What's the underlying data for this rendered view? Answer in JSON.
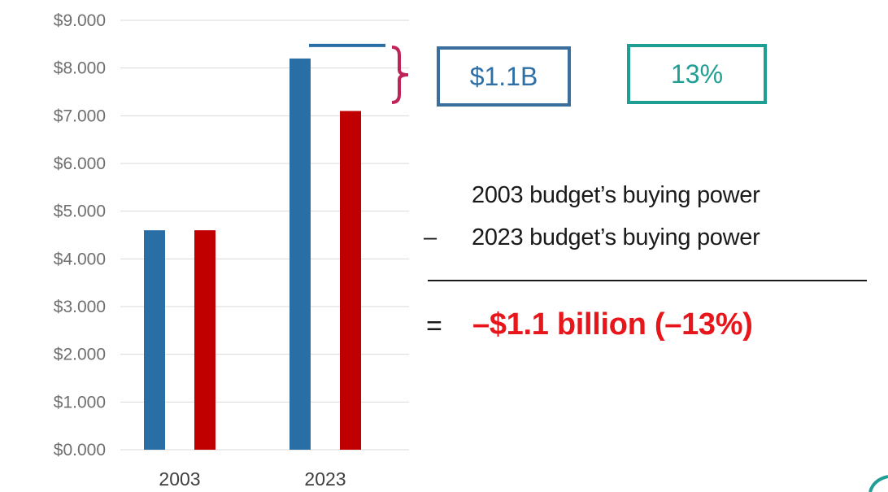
{
  "chart_data": {
    "type": "bar",
    "categories": [
      "2003",
      "2023"
    ],
    "series": [
      {
        "values": [
          4.6,
          8.2
        ]
      },
      {
        "values": [
          4.6,
          7.1
        ]
      }
    ],
    "yticks": [
      "$0.000",
      "$1.000",
      "$2.000",
      "$3.000",
      "$4.000",
      "$5.000",
      "$6.000",
      "$7.000",
      "$8.000",
      "$9.000"
    ],
    "ylim": [
      0,
      9
    ],
    "grid": true,
    "title": "",
    "xlabel": "",
    "ylabel": ""
  },
  "colors": {
    "series_1": "#2a6ea6",
    "series_2": "#c00000",
    "bracket": "#c0235a",
    "amount_box": "#3a6e9c",
    "percent_box": "#1f9e94",
    "result_text": "#e8151b"
  },
  "annotations": {
    "gap_amount": "$1.1B",
    "gap_percent": "13%",
    "equation": {
      "line1": "2003 budget’s buying power",
      "operator_minus": "–",
      "line2": "2023 budget’s buying power",
      "operator_equals": "=",
      "result": "–$1.1 billion (–13%)"
    }
  }
}
